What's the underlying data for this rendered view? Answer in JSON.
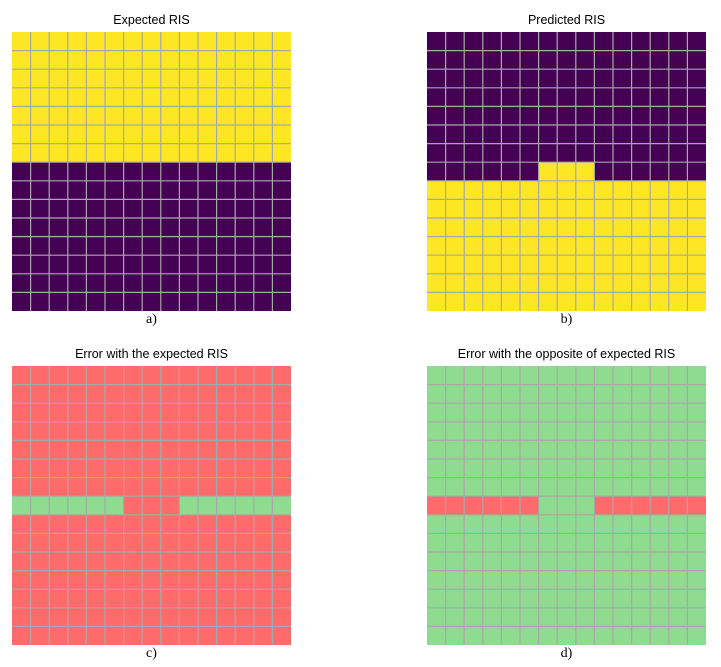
{
  "colors": {
    "yellow": "#fde725",
    "purple": "#440154",
    "red": "#ff6b6b",
    "green": "#8fdb8f",
    "gridline": "#a8a8a8"
  },
  "chart_data": [
    {
      "type": "heatmap",
      "title": "Expected RIS",
      "caption": "a)",
      "rows": 15,
      "cols": 15,
      "palette": {
        "1": "yellow",
        "0": "purple"
      },
      "row_patterns": [
        "AAAAAAAAAAAAAAA",
        "AAAAAAAAAAAAAAA",
        "AAAAAAAAAAAAAAA",
        "AAAAAAAAAAAAAAA",
        "AAAAAAAAAAAAAAA",
        "AAAAAAAAAAAAAAA",
        "AAAAAAAAAAAAAAA",
        "BBBBBBBBBBBBBBB",
        "BBBBBBBBBBBBBBB",
        "BBBBBBBBBBBBBBB",
        "BBBBBBBBBBBBBBB",
        "BBBBBBBBBBBBBBB",
        "BBBBBBBBBBBBBBB",
        "BBBBBBBBBBBBBBB",
        "BBBBBBBBBBBBBBB"
      ],
      "legend_key": {
        "A": "1",
        "B": "0"
      }
    },
    {
      "type": "heatmap",
      "title": "Predicted RIS",
      "caption": "b)",
      "rows": 15,
      "cols": 15,
      "palette": {
        "1": "yellow",
        "0": "purple"
      },
      "row_patterns": [
        "BBBBBBBBBBBBBBB",
        "BBBBBBBBBBBBBBB",
        "BBBBBBBBBBBBBBB",
        "BBBBBBBBBBBBBBB",
        "BBBBBBBBBBBBBBB",
        "BBBBBBBBBBBBBBB",
        "BBBBBBBBBBBBBBB",
        "BBBBBBAAABBBBBB",
        "AAAAAAAAAAAAAAA",
        "AAAAAAAAAAAAAAA",
        "AAAAAAAAAAAAAAA",
        "AAAAAAAAAAAAAAA",
        "AAAAAAAAAAAAAAA",
        "AAAAAAAAAAAAAAA",
        "AAAAAAAAAAAAAAA"
      ],
      "legend_key": {
        "A": "1",
        "B": "0"
      }
    },
    {
      "type": "heatmap",
      "title": "Error with the expected RIS",
      "caption": "c)",
      "rows": 15,
      "cols": 15,
      "palette": {
        "1": "red",
        "0": "green"
      },
      "row_patterns": [
        "AAAAAAAAAAAAAAA",
        "AAAAAAAAAAAAAAA",
        "AAAAAAAAAAAAAAA",
        "AAAAAAAAAAAAAAA",
        "AAAAAAAAAAAAAAA",
        "AAAAAAAAAAAAAAA",
        "AAAAAAAAAAAAAAA",
        "BBBBBBAAABBBBBB",
        "AAAAAAAAAAAAAAA",
        "AAAAAAAAAAAAAAA",
        "AAAAAAAAAAAAAAA",
        "AAAAAAAAAAAAAAA",
        "AAAAAAAAAAAAAAA",
        "AAAAAAAAAAAAAAA",
        "AAAAAAAAAAAAAAA"
      ],
      "legend_key": {
        "A": "1",
        "B": "0"
      }
    },
    {
      "type": "heatmap",
      "title": "Error with the opposite of expected RIS",
      "caption": "d)",
      "rows": 15,
      "cols": 15,
      "palette": {
        "1": "red",
        "0": "green"
      },
      "row_patterns": [
        "BBBBBBBBBBBBBBB",
        "BBBBBBBBBBBBBBB",
        "BBBBBBBBBBBBBBB",
        "BBBBBBBBBBBBBBB",
        "BBBBBBBBBBBBBBB",
        "BBBBBBBBBBBBBBB",
        "BBBBBBBBBBBBBBB",
        "AAAAAABBBAAAAAA",
        "BBBBBBBBBBBBBBB",
        "BBBBBBBBBBBBBBB",
        "BBBBBBBBBBBBBBB",
        "BBBBBBBBBBBBBBB",
        "BBBBBBBBBBBBBBB",
        "BBBBBBBBBBBBBBB",
        "BBBBBBBBBBBBBBB"
      ],
      "legend_key": {
        "A": "1",
        "B": "0"
      }
    }
  ]
}
